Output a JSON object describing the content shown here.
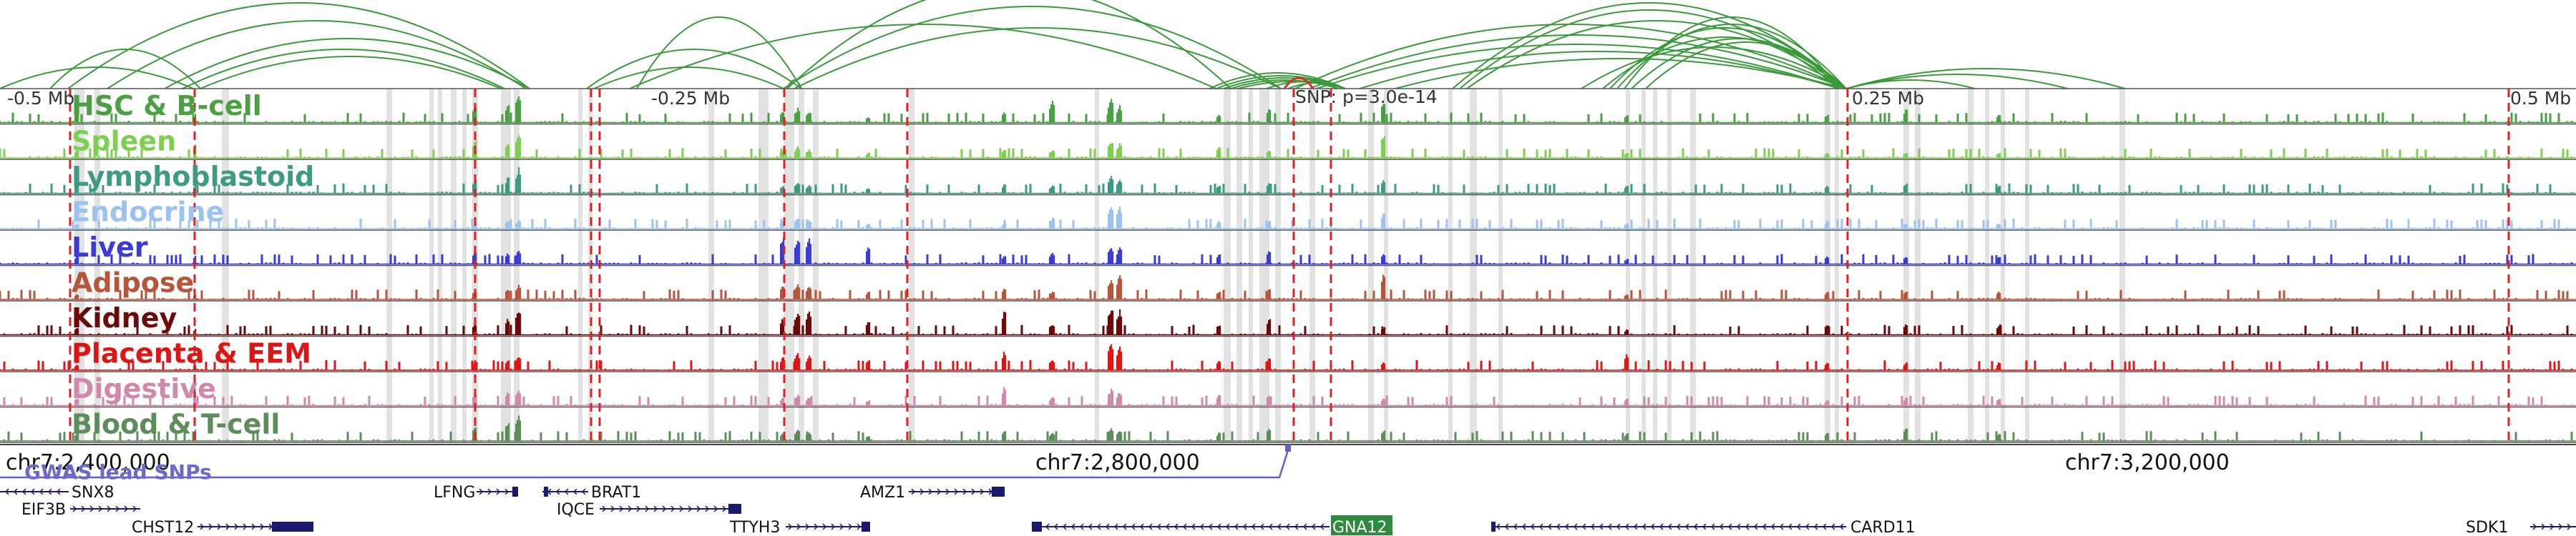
{
  "snp_label": "SNP: p=3.0e-14",
  "scale": {
    "left": "-0.5 Mb",
    "left_mid": "-0.25 Mb",
    "right_mid": "0.25 Mb",
    "right": "0.5 Mb"
  },
  "axis": {
    "ticks": [
      "chr7:2,400,000",
      "chr7:2,800,000",
      "chr7:3,200,000"
    ]
  },
  "gwas_label": "GWAS lead SNPs",
  "colors": {
    "arc": "#3a9a3a",
    "arc_highlight": "#d9302a",
    "dashed": "#e02020",
    "shade": "#d8d8d8",
    "gene": "#1a1a6e",
    "gwas": "#6060c8",
    "highlight_gene_bg": "#2e8b3e"
  },
  "tracks": [
    {
      "name": "HSC & B-cell",
      "color": "#4aa043"
    },
    {
      "name": "Spleen",
      "color": "#7ccf4f"
    },
    {
      "name": "Lymphoblastoid",
      "color": "#3d9b84"
    },
    {
      "name": "Endocrine",
      "color": "#9cc2f2"
    },
    {
      "name": "Liver",
      "color": "#3b3bd6"
    },
    {
      "name": "Adipose",
      "color": "#b5553a"
    },
    {
      "name": "Kidney",
      "color": "#6a0a0a"
    },
    {
      "name": "Placenta & EEM",
      "color": "#dd1515"
    },
    {
      "name": "Digestive",
      "color": "#d089ad"
    },
    {
      "name": "Blood & T-cell",
      "color": "#5c8d5a"
    }
  ],
  "genes": [
    {
      "name": "SNX8",
      "row": 0
    },
    {
      "name": "LFNG",
      "row": 0
    },
    {
      "name": "BRAT1",
      "row": 0
    },
    {
      "name": "AMZ1",
      "row": 0
    },
    {
      "name": "EIF3B",
      "row": 1
    },
    {
      "name": "IQCE",
      "row": 1
    },
    {
      "name": "CHST12",
      "row": 2
    },
    {
      "name": "TTYH3",
      "row": 2
    },
    {
      "name": "GNA12",
      "row": 2,
      "highlight": true
    },
    {
      "name": "CARD11",
      "row": 2
    },
    {
      "name": "SDK1",
      "row": 2
    }
  ]
}
